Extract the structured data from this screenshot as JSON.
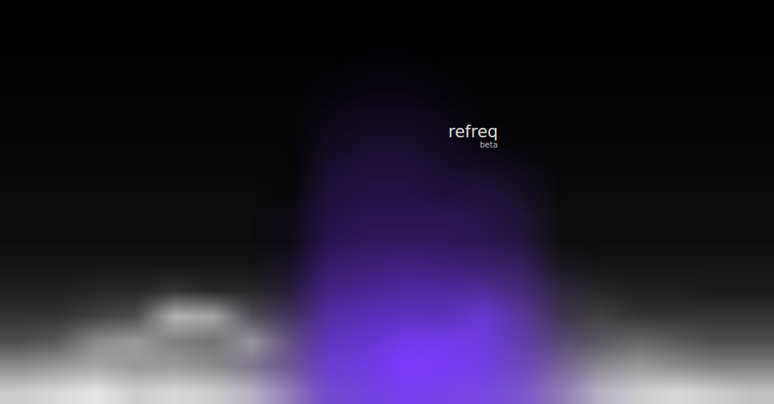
{
  "chart_data": {
    "type": "heatmap",
    "title": "refreq",
    "subtitle": "beta",
    "tick_labels": false,
    "zlim": [
      0,
      1
    ],
    "series": [
      {
        "color": "#ffffff",
        "cells": [
          [
            0.8,
            0.85,
            0.9,
            0.8,
            0.85,
            0.8,
            0.75,
            0.6,
            0.4,
            0.35,
            0.35,
            0.4,
            0.45,
            0.5,
            0.6,
            0.75,
            0.8,
            0.85,
            0.8,
            0.75
          ],
          [
            0.55,
            0.6,
            0.65,
            0.6,
            0.6,
            0.55,
            0.5,
            0.4,
            0.25,
            0.2,
            0.2,
            0.25,
            0.3,
            0.35,
            0.45,
            0.55,
            0.6,
            0.55,
            0.5,
            0.5
          ],
          [
            0.3,
            0.35,
            0.55,
            0.6,
            0.5,
            0.45,
            0.6,
            0.35,
            0.15,
            0.1,
            0.1,
            0.15,
            0.2,
            0.25,
            0.3,
            0.35,
            0.4,
            0.35,
            0.3,
            0.3
          ],
          [
            0.2,
            0.2,
            0.25,
            0.3,
            0.7,
            0.65,
            0.3,
            0.2,
            0.1,
            0.05,
            0.05,
            0.1,
            0.15,
            0.2,
            0.2,
            0.25,
            0.2,
            0.2,
            0.2,
            0.2
          ],
          [
            0.12,
            0.12,
            0.15,
            0.15,
            0.2,
            0.15,
            0.15,
            0.1,
            0.05,
            0.05,
            0.05,
            0.05,
            0.1,
            0.12,
            0.15,
            0.15,
            0.12,
            0.12,
            0.1,
            0.1
          ],
          [
            0.08,
            0.08,
            0.08,
            0.08,
            0.08,
            0.08,
            0.08,
            0.05,
            0.03,
            0.03,
            0.03,
            0.03,
            0.05,
            0.08,
            0.08,
            0.08,
            0.08,
            0.08,
            0.08,
            0.08
          ],
          [
            0.05,
            0.05,
            0.05,
            0.05,
            0.05,
            0.05,
            0.05,
            0.03,
            0.02,
            0.02,
            0.02,
            0.02,
            0.03,
            0.05,
            0.05,
            0.05,
            0.05,
            0.05,
            0.05,
            0.05
          ],
          [
            0.05,
            0.05,
            0.05,
            0.05,
            0.05,
            0.05,
            0.05,
            0.03,
            0.02,
            0.02,
            0.02,
            0.02,
            0.03,
            0.05,
            0.05,
            0.05,
            0.05,
            0.05,
            0.05,
            0.05
          ],
          [
            0.04,
            0.04,
            0.04,
            0.04,
            0.04,
            0.04,
            0.04,
            0.03,
            0.02,
            0.02,
            0.02,
            0.02,
            0.03,
            0.04,
            0.04,
            0.04,
            0.04,
            0.04,
            0.04,
            0.04
          ],
          [
            0.03,
            0.03,
            0.03,
            0.03,
            0.03,
            0.03,
            0.03,
            0.02,
            0.02,
            0.02,
            0.02,
            0.02,
            0.02,
            0.03,
            0.03,
            0.03,
            0.03,
            0.03,
            0.03,
            0.03
          ],
          [
            0.02,
            0.02,
            0.02,
            0.02,
            0.02,
            0.02,
            0.02,
            0.02,
            0.02,
            0.02,
            0.02,
            0.02,
            0.02,
            0.02,
            0.02,
            0.02,
            0.02,
            0.02,
            0.02,
            0.02
          ],
          [
            0.02,
            0.02,
            0.02,
            0.02,
            0.02,
            0.02,
            0.02,
            0.02,
            0.02,
            0.02,
            0.02,
            0.02,
            0.02,
            0.02,
            0.02,
            0.02,
            0.02,
            0.02,
            0.02,
            0.02
          ],
          [
            0.01,
            0.01,
            0.01,
            0.01,
            0.01,
            0.01,
            0.01,
            0.01,
            0.01,
            0.01,
            0.01,
            0.01,
            0.01,
            0.01,
            0.01,
            0.01,
            0.01,
            0.01,
            0.01,
            0.01
          ],
          [
            0.01,
            0.01,
            0.01,
            0.01,
            0.01,
            0.01,
            0.01,
            0.01,
            0.01,
            0.01,
            0.01,
            0.01,
            0.01,
            0.01,
            0.01,
            0.01,
            0.01,
            0.01,
            0.01,
            0.01
          ],
          [
            0,
            0,
            0,
            0,
            0,
            0,
            0,
            0,
            0,
            0,
            0,
            0,
            0,
            0,
            0,
            0,
            0,
            0,
            0,
            0
          ],
          [
            0,
            0,
            0,
            0,
            0,
            0,
            0,
            0,
            0,
            0,
            0,
            0,
            0,
            0,
            0,
            0,
            0,
            0,
            0,
            0
          ]
        ]
      },
      {
        "color": "#7b3cff",
        "cells": [
          [
            0,
            0,
            0,
            0,
            0,
            0,
            0.1,
            0.3,
            0.7,
            0.8,
            0.9,
            0.85,
            0.8,
            0.6,
            0.3,
            0.1,
            0,
            0,
            0,
            0
          ],
          [
            0,
            0,
            0,
            0,
            0,
            0,
            0.1,
            0.3,
            0.75,
            0.85,
            1,
            0.95,
            0.85,
            0.6,
            0.25,
            0.05,
            0,
            0,
            0,
            0
          ],
          [
            0,
            0,
            0,
            0,
            0,
            0,
            0.05,
            0.25,
            0.7,
            0.8,
            0.9,
            0.9,
            0.85,
            0.55,
            0.2,
            0.05,
            0,
            0,
            0,
            0
          ],
          [
            0,
            0,
            0,
            0,
            0,
            0,
            0.05,
            0.2,
            0.6,
            0.7,
            0.75,
            0.7,
            0.8,
            0.5,
            0.15,
            0,
            0,
            0,
            0,
            0
          ],
          [
            0,
            0,
            0,
            0,
            0,
            0,
            0,
            0.15,
            0.5,
            0.55,
            0.6,
            0.6,
            0.55,
            0.4,
            0.1,
            0,
            0,
            0,
            0,
            0
          ],
          [
            0,
            0,
            0,
            0,
            0,
            0,
            0,
            0.1,
            0.4,
            0.45,
            0.5,
            0.45,
            0.4,
            0.3,
            0.05,
            0,
            0,
            0,
            0,
            0
          ],
          [
            0,
            0,
            0,
            0,
            0,
            0,
            0,
            0.05,
            0.3,
            0.35,
            0.35,
            0.35,
            0.3,
            0.2,
            0,
            0,
            0,
            0,
            0,
            0
          ],
          [
            0,
            0,
            0,
            0,
            0,
            0,
            0,
            0.05,
            0.25,
            0.3,
            0.3,
            0.3,
            0.25,
            0.15,
            0,
            0,
            0,
            0,
            0,
            0
          ],
          [
            0,
            0,
            0,
            0,
            0,
            0,
            0,
            0,
            0.2,
            0.25,
            0.25,
            0.2,
            0.2,
            0.1,
            0,
            0,
            0,
            0,
            0,
            0
          ],
          [
            0,
            0,
            0,
            0,
            0,
            0,
            0,
            0,
            0.15,
            0.2,
            0.2,
            0.15,
            0.1,
            0.05,
            0,
            0,
            0,
            0,
            0,
            0
          ],
          [
            0,
            0,
            0,
            0,
            0,
            0,
            0,
            0,
            0.1,
            0.15,
            0.15,
            0.1,
            0.03,
            0,
            0,
            0,
            0,
            0,
            0,
            0
          ],
          [
            0,
            0,
            0,
            0,
            0,
            0,
            0,
            0,
            0.05,
            0.1,
            0.1,
            0.05,
            0,
            0,
            0,
            0,
            0,
            0,
            0,
            0
          ],
          [
            0,
            0,
            0,
            0,
            0,
            0,
            0,
            0,
            0.03,
            0.05,
            0.05,
            0.03,
            0,
            0,
            0,
            0,
            0,
            0,
            0,
            0
          ],
          [
            0,
            0,
            0,
            0,
            0,
            0,
            0,
            0,
            0,
            0.02,
            0.02,
            0,
            0,
            0,
            0,
            0,
            0,
            0,
            0,
            0
          ],
          [
            0,
            0,
            0,
            0,
            0,
            0,
            0,
            0,
            0,
            0,
            0,
            0,
            0,
            0,
            0,
            0,
            0,
            0,
            0,
            0
          ],
          [
            0,
            0,
            0,
            0,
            0,
            0,
            0,
            0,
            0,
            0,
            0,
            0,
            0,
            0,
            0,
            0,
            0,
            0,
            0,
            0
          ]
        ]
      }
    ]
  }
}
